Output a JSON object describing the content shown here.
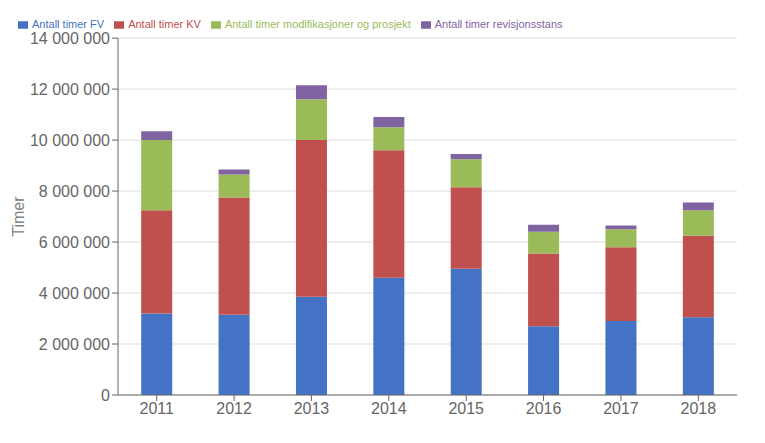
{
  "chart_data": {
    "type": "bar",
    "stacked": true,
    "ylabel": "Timer",
    "categories": [
      "2011",
      "2012",
      "2013",
      "2014",
      "2015",
      "2016",
      "2017",
      "2018"
    ],
    "series": [
      {
        "name": "Antall timer FV",
        "color": "#4472C4",
        "values": [
          3200000,
          3150000,
          3850000,
          4600000,
          4950000,
          2700000,
          2900000,
          3050000
        ]
      },
      {
        "name": "Antall timer KV",
        "color": "#C0504D",
        "values": [
          4050000,
          4600000,
          6150000,
          5000000,
          3200000,
          2850000,
          2900000,
          3200000
        ]
      },
      {
        "name": "Antall timer modifikasjoner og prosjekt",
        "color": "#9BBB59",
        "values": [
          2750000,
          900000,
          1600000,
          900000,
          1100000,
          850000,
          700000,
          1000000
        ]
      },
      {
        "name": "Antall timer revisjonsstans",
        "color": "#8064A2",
        "values": [
          350000,
          200000,
          550000,
          400000,
          200000,
          280000,
          150000,
          300000
        ]
      }
    ],
    "ylim": [
      0,
      14000000
    ],
    "yticks": [
      0,
      {
        "value": 2000000,
        "label": "2 000 000"
      },
      {
        "value": 4000000,
        "label": "4 000 000"
      },
      {
        "value": 6000000,
        "label": "6 000 000"
      },
      {
        "value": 8000000,
        "label": "8 000 000"
      },
      {
        "value": 10000000,
        "label": "10 000 000"
      },
      {
        "value": 12000000,
        "label": "12 000 000"
      },
      {
        "value": 14000000,
        "label": "14 000 000"
      }
    ],
    "grid": true,
    "legend": "upper left"
  }
}
